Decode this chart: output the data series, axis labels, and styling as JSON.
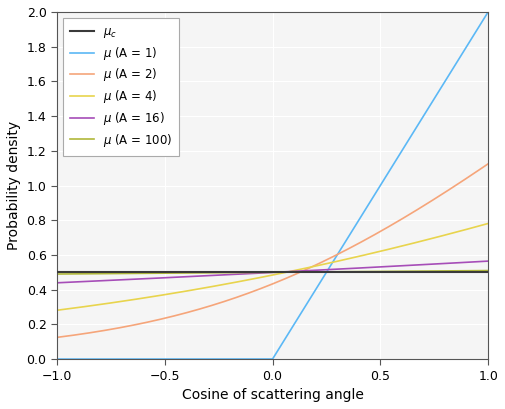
{
  "title": "",
  "xlabel": "Cosine of scattering angle",
  "ylabel": "Probability density",
  "xlim": [
    -1,
    1
  ],
  "ylim": [
    0,
    2
  ],
  "xticks": [
    -1,
    -0.5,
    0,
    0.5,
    1
  ],
  "yticks": [
    0,
    0.2,
    0.4,
    0.6,
    0.8,
    1.0,
    1.2,
    1.4,
    1.6,
    1.8,
    2.0
  ],
  "mu_c_color": "#3a3a3a",
  "mu_A1_color": "#5bb8f5",
  "mu_A2_color": "#f5a57a",
  "mu_A4_color": "#e8d44d",
  "mu_A16_color": "#a64db8",
  "mu_A100_color": "#b0b83a",
  "linewidth": 1.2,
  "A_values": [
    1,
    2,
    4,
    16,
    100
  ],
  "bg_color": "#f0f0f0",
  "grid_color": "#ffffff",
  "axis_bg": "#f5f5f5"
}
